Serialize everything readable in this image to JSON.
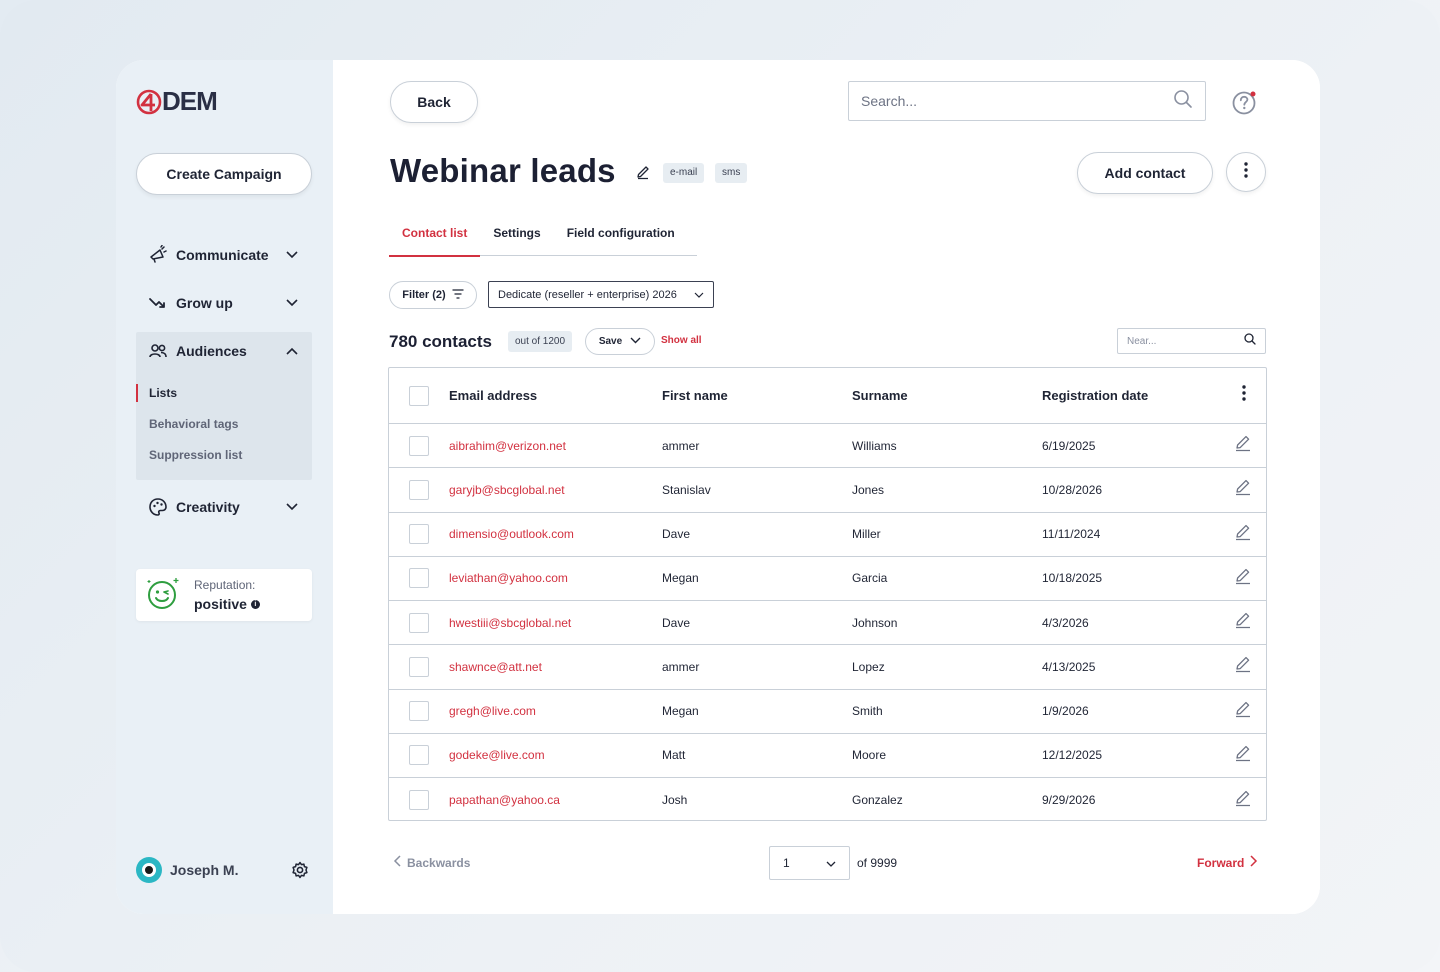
{
  "brand": {
    "logo_text": "DEM",
    "accent": "#d23140"
  },
  "sidebar": {
    "create_campaign": "Create Campaign",
    "nav": [
      {
        "label": "Communicate",
        "icon": "megaphone-icon"
      },
      {
        "label": "Grow up",
        "icon": "trend-icon"
      },
      {
        "label": "Audiences",
        "icon": "people-icon",
        "expanded": true
      },
      {
        "label": "Creativity",
        "icon": "palette-icon"
      }
    ],
    "audience_subitems": [
      "Lists",
      "Behavioral tags",
      "Suppression list"
    ],
    "reputation": {
      "label": "Reputation:",
      "value": "positive"
    },
    "user": {
      "name": "Joseph M."
    }
  },
  "header": {
    "back": "Back",
    "search_placeholder": "Search...",
    "title": "Webinar leads",
    "tags": [
      "e-mail",
      "sms"
    ],
    "add_contact": "Add contact"
  },
  "tabs": [
    "Contact list",
    "Settings",
    "Field configuration"
  ],
  "filters": {
    "filter_label": "Filter (2)",
    "segment_value": "Dedicate (reseller + enterprise) 2026"
  },
  "summary": {
    "count": "780 contacts",
    "out_of": "out of 1200",
    "save": "Save",
    "show_all": "Show all",
    "near_placeholder": "Near..."
  },
  "table": {
    "columns": [
      "Email address",
      "First name",
      "Surname",
      "Registration date"
    ],
    "rows": [
      {
        "email": "aibrahim@verizon.net",
        "first": "ammer",
        "surname": "Williams",
        "date": "6/19/2025"
      },
      {
        "email": "garyjb@sbcglobal.net",
        "first": "Stanislav",
        "surname": "Jones",
        "date": "10/28/2026"
      },
      {
        "email": "dimensio@outlook.com",
        "first": "Dave",
        "surname": "Miller",
        "date": "11/11/2024"
      },
      {
        "email": "leviathan@yahoo.com",
        "first": "Megan",
        "surname": "Garcia",
        "date": "10/18/2025"
      },
      {
        "email": "hwestiii@sbcglobal.net",
        "first": "Dave",
        "surname": "Johnson",
        "date": "4/3/2026"
      },
      {
        "email": "shawnce@att.net",
        "first": "ammer",
        "surname": "Lopez",
        "date": "4/13/2025"
      },
      {
        "email": "gregh@live.com",
        "first": "Megan",
        "surname": "Smith",
        "date": "1/9/2026"
      },
      {
        "email": "godeke@live.com",
        "first": "Matt",
        "surname": "Moore",
        "date": "12/12/2025"
      },
      {
        "email": "papathan@yahoo.ca",
        "first": "Josh",
        "surname": "Gonzalez",
        "date": "9/29/2026"
      }
    ]
  },
  "pagination": {
    "backwards": "Backwards",
    "page": "1",
    "of": "of 9999",
    "forward": "Forward"
  }
}
